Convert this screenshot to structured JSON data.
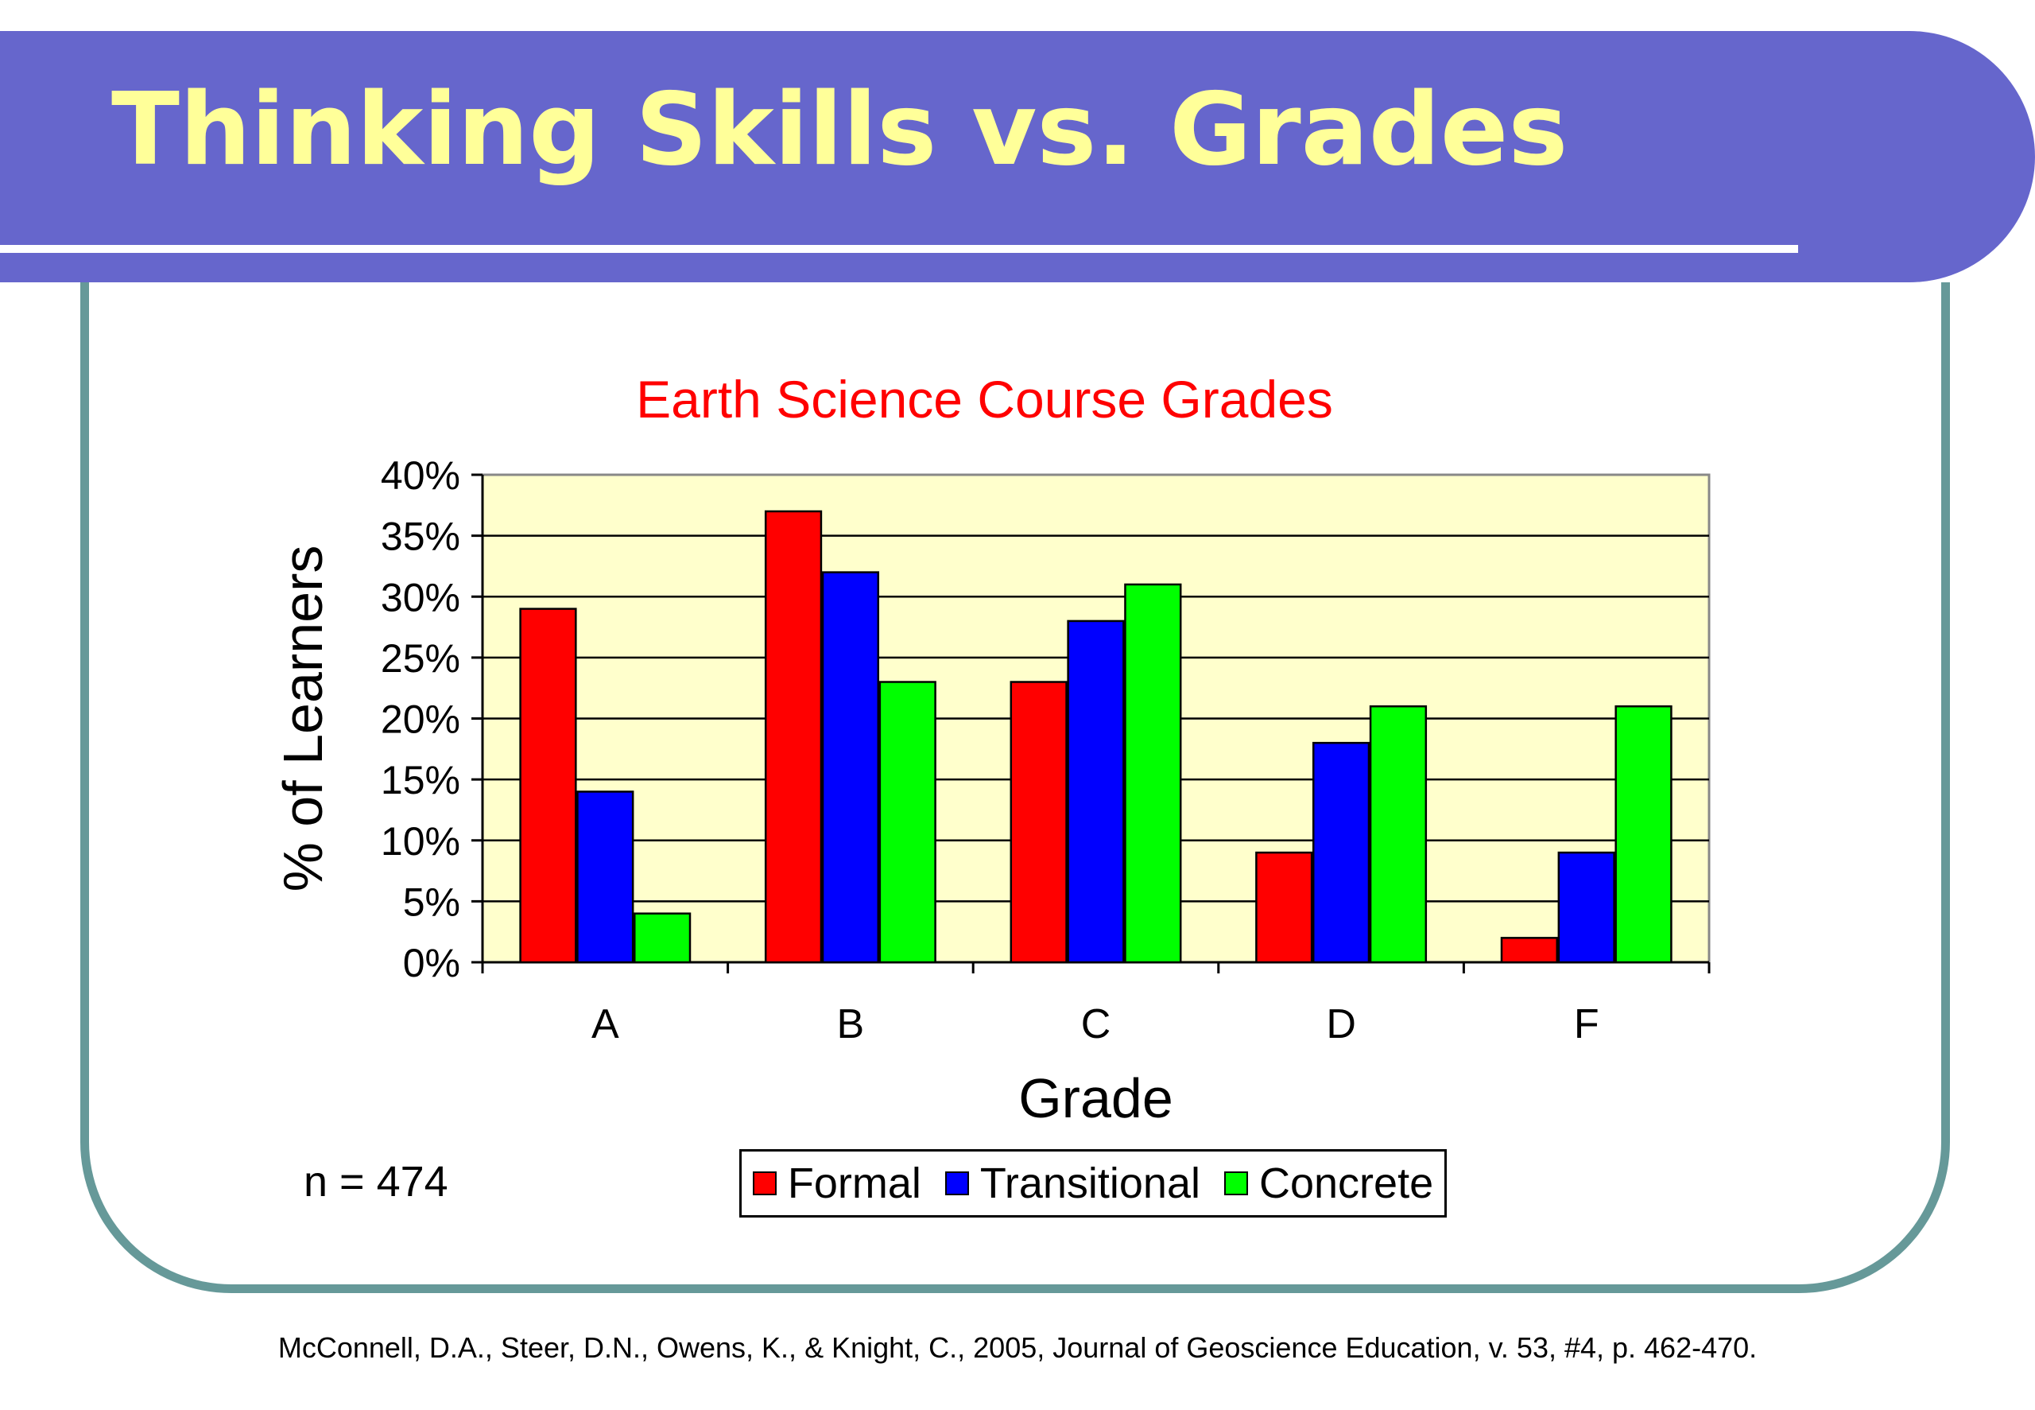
{
  "slide": {
    "title": "Thinking Skills vs. Grades",
    "sample_size": "n = 474",
    "citation": "McConnell, D.A., Steer, D.N., Owens, K., & Knight, C., 2005, Journal of Geoscience Education, v. 53, #4, p. 462-470.",
    "colors": {
      "header": "#6666cc",
      "title_text": "#ffff99",
      "frame": "#669999",
      "plot_bg": "#ffffcc"
    }
  },
  "chart_data": {
    "type": "bar",
    "title": "Earth Science Course Grades",
    "xlabel": "Grade",
    "ylabel": "% of Learners",
    "categories": [
      "A",
      "B",
      "C",
      "D",
      "F"
    ],
    "ylim": [
      0,
      40
    ],
    "yticks": [
      "0%",
      "5%",
      "10%",
      "15%",
      "20%",
      "25%",
      "30%",
      "35%",
      "40%"
    ],
    "grid": true,
    "legend_position": "bottom",
    "series": [
      {
        "name": "Formal",
        "color": "#ff0000",
        "values": [
          29,
          37,
          23,
          9,
          2
        ]
      },
      {
        "name": "Transitional",
        "color": "#0000ff",
        "values": [
          14,
          32,
          28,
          18,
          9
        ]
      },
      {
        "name": "Concrete",
        "color": "#00ff00",
        "values": [
          4,
          23,
          31,
          21,
          21
        ]
      }
    ]
  }
}
